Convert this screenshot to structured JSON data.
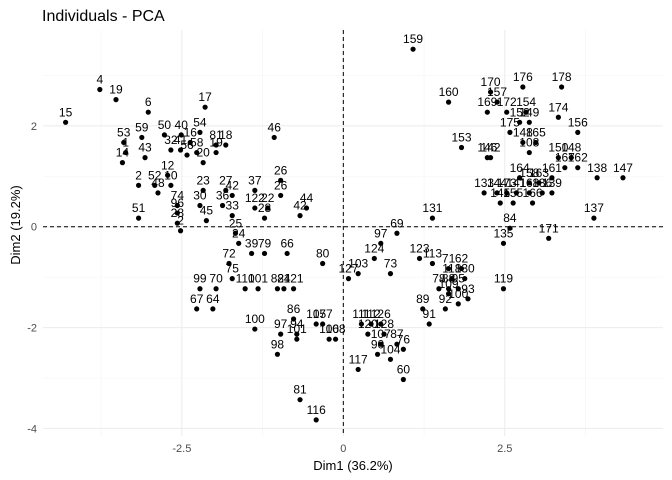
{
  "chart_data": {
    "type": "scatter",
    "title": "Individuals - PCA",
    "xlabel": "Dim1 (36.2%)",
    "ylabel": "Dim2 (19.2%)",
    "xlim": [
      -4.65,
      4.95
    ],
    "ylim": [
      -4.15,
      3.9
    ],
    "x_ticks": [
      -2.5,
      0.0,
      2.5
    ],
    "y_ticks": [
      -4,
      -2,
      0,
      2
    ],
    "grid": true,
    "reference_lines": {
      "x": 0,
      "y": 0,
      "style": "dashed"
    },
    "points": [
      {
        "label": "159",
        "x": 1.08,
        "y": 3.52
      },
      {
        "label": "4",
        "x": -3.77,
        "y": 2.72
      },
      {
        "label": "19",
        "x": -3.52,
        "y": 2.52
      },
      {
        "label": "15",
        "x": -4.3,
        "y": 2.07
      },
      {
        "label": "6",
        "x": -3.02,
        "y": 2.27
      },
      {
        "label": "17",
        "x": -2.14,
        "y": 2.37
      },
      {
        "label": "53",
        "x": -3.4,
        "y": 1.67
      },
      {
        "label": "59",
        "x": -3.12,
        "y": 1.77
      },
      {
        "label": "50",
        "x": -2.77,
        "y": 1.82
      },
      {
        "label": "40",
        "x": -2.51,
        "y": 1.82
      },
      {
        "label": "54",
        "x": -2.22,
        "y": 1.87
      },
      {
        "label": "1",
        "x": -3.37,
        "y": 1.47
      },
      {
        "label": "14",
        "x": -3.42,
        "y": 1.27
      },
      {
        "label": "43",
        "x": -3.07,
        "y": 1.37
      },
      {
        "label": "16",
        "x": -2.37,
        "y": 1.67
      },
      {
        "label": "81",
        "x": -1.97,
        "y": 1.62
      },
      {
        "label": "18",
        "x": -1.82,
        "y": 1.62
      },
      {
        "label": "58",
        "x": -2.27,
        "y": 1.47
      },
      {
        "label": "19",
        "x": -1.97,
        "y": 1.47
      },
      {
        "label": "32",
        "x": -2.67,
        "y": 1.52
      },
      {
        "label": "41",
        "x": -2.52,
        "y": 1.52
      },
      {
        "label": "56",
        "x": -2.42,
        "y": 1.42
      },
      {
        "label": "46",
        "x": -1.07,
        "y": 1.77
      },
      {
        "label": "20",
        "x": -2.17,
        "y": 1.27
      },
      {
        "label": "12",
        "x": -2.72,
        "y": 1.02
      },
      {
        "label": "2",
        "x": -3.17,
        "y": 0.82
      },
      {
        "label": "52",
        "x": -2.92,
        "y": 0.82
      },
      {
        "label": "10",
        "x": -2.67,
        "y": 0.82
      },
      {
        "label": "48",
        "x": -2.87,
        "y": 0.67
      },
      {
        "label": "23",
        "x": -2.17,
        "y": 0.72
      },
      {
        "label": "27",
        "x": -1.82,
        "y": 0.72
      },
      {
        "label": "37",
        "x": -1.37,
        "y": 0.72
      },
      {
        "label": "26",
        "x": -0.97,
        "y": 0.92
      },
      {
        "label": "26",
        "x": -0.97,
        "y": 0.62
      },
      {
        "label": "74",
        "x": -2.57,
        "y": 0.42
      },
      {
        "label": "30",
        "x": -2.22,
        "y": 0.42
      },
      {
        "label": "36",
        "x": -1.87,
        "y": 0.42
      },
      {
        "label": "42",
        "x": -1.72,
        "y": 0.62
      },
      {
        "label": "122",
        "x": -1.37,
        "y": 0.37
      },
      {
        "label": "22",
        "x": -1.17,
        "y": 0.37
      },
      {
        "label": "44",
        "x": -0.57,
        "y": 0.37
      },
      {
        "label": "42",
        "x": -0.67,
        "y": 0.22
      },
      {
        "label": "51",
        "x": -3.17,
        "y": 0.17
      },
      {
        "label": "96",
        "x": -2.57,
        "y": 0.27
      },
      {
        "label": "28",
        "x": -2.57,
        "y": 0.07
      },
      {
        "label": "45",
        "x": -2.12,
        "y": 0.12
      },
      {
        "label": "33",
        "x": -1.72,
        "y": 0.22
      },
      {
        "label": "28",
        "x": -1.22,
        "y": 0.17
      },
      {
        "label": "2",
        "x": -2.52,
        "y": -0.08
      },
      {
        "label": "25",
        "x": -1.67,
        "y": -0.13
      },
      {
        "label": "24",
        "x": -1.62,
        "y": -0.33
      },
      {
        "label": "72",
        "x": -1.77,
        "y": -0.73
      },
      {
        "label": "39",
        "x": -1.42,
        "y": -0.53
      },
      {
        "label": "79",
        "x": -1.22,
        "y": -0.53
      },
      {
        "label": "66",
        "x": -0.87,
        "y": -0.53
      },
      {
        "label": "80",
        "x": -0.32,
        "y": -0.73
      },
      {
        "label": "99",
        "x": -2.22,
        "y": -1.23
      },
      {
        "label": "70",
        "x": -1.97,
        "y": -1.23
      },
      {
        "label": "75",
        "x": -1.72,
        "y": -1.03
      },
      {
        "label": "110",
        "x": -1.52,
        "y": -1.23
      },
      {
        "label": "101",
        "x": -1.32,
        "y": -1.23
      },
      {
        "label": "67",
        "x": -2.27,
        "y": -1.63
      },
      {
        "label": "64",
        "x": -2.02,
        "y": -1.63
      },
      {
        "label": "82",
        "x": -1.02,
        "y": -1.23
      },
      {
        "label": "84",
        "x": -0.92,
        "y": -1.23
      },
      {
        "label": "121",
        "x": -0.77,
        "y": -1.23
      },
      {
        "label": "100",
        "x": -1.37,
        "y": -2.03
      },
      {
        "label": "86",
        "x": -0.77,
        "y": -1.83
      },
      {
        "label": "97",
        "x": -0.97,
        "y": -2.13
      },
      {
        "label": "94",
        "x": -0.72,
        "y": -2.13
      },
      {
        "label": "101",
        "x": -0.72,
        "y": -2.23
      },
      {
        "label": "98",
        "x": -1.02,
        "y": -2.53
      },
      {
        "label": "105",
        "x": -0.42,
        "y": -1.93
      },
      {
        "label": "177",
        "x": -0.32,
        "y": -1.93
      },
      {
        "label": "106",
        "x": -0.22,
        "y": -2.23
      },
      {
        "label": "108",
        "x": -0.12,
        "y": -2.23
      },
      {
        "label": "81",
        "x": -0.67,
        "y": -3.43
      },
      {
        "label": "116",
        "x": -0.42,
        "y": -3.83
      },
      {
        "label": "103",
        "x": 0.23,
        "y": -0.93
      },
      {
        "label": "127",
        "x": 0.08,
        "y": -1.03
      },
      {
        "label": "97",
        "x": 0.58,
        "y": -0.33
      },
      {
        "label": "124",
        "x": 0.48,
        "y": -0.63
      },
      {
        "label": "69",
        "x": 0.83,
        "y": -0.13
      },
      {
        "label": "73",
        "x": 0.73,
        "y": -0.93
      },
      {
        "label": "111",
        "x": 0.28,
        "y": -1.93
      },
      {
        "label": "112",
        "x": 0.43,
        "y": -1.93
      },
      {
        "label": "126",
        "x": 0.58,
        "y": -1.93
      },
      {
        "label": "120",
        "x": 0.38,
        "y": -2.13
      },
      {
        "label": "128",
        "x": 0.63,
        "y": -2.13
      },
      {
        "label": "107",
        "x": 0.58,
        "y": -2.33
      },
      {
        "label": "87",
        "x": 0.83,
        "y": -2.33
      },
      {
        "label": "90",
        "x": 0.53,
        "y": -2.53
      },
      {
        "label": "104",
        "x": 0.73,
        "y": -2.63
      },
      {
        "label": "76",
        "x": 0.93,
        "y": -2.43
      },
      {
        "label": "117",
        "x": 0.23,
        "y": -2.83
      },
      {
        "label": "60",
        "x": 0.93,
        "y": -3.03
      },
      {
        "label": "131",
        "x": 1.38,
        "y": 0.17
      },
      {
        "label": "123",
        "x": 1.18,
        "y": -0.63
      },
      {
        "label": "113",
        "x": 1.38,
        "y": -0.73
      },
      {
        "label": "71",
        "x": 1.63,
        "y": -0.83
      },
      {
        "label": "62",
        "x": 1.83,
        "y": -0.83
      },
      {
        "label": "118",
        "x": 1.68,
        "y": -1.03
      },
      {
        "label": "130",
        "x": 1.88,
        "y": -1.03
      },
      {
        "label": "78",
        "x": 1.48,
        "y": -1.23
      },
      {
        "label": "88",
        "x": 1.63,
        "y": -1.23
      },
      {
        "label": "95",
        "x": 1.78,
        "y": -1.23
      },
      {
        "label": "93",
        "x": 1.93,
        "y": -1.43
      },
      {
        "label": "109",
        "x": 1.63,
        "y": -1.33
      },
      {
        "label": "100",
        "x": 1.78,
        "y": -1.53
      },
      {
        "label": "92",
        "x": 1.58,
        "y": -1.63
      },
      {
        "label": "89",
        "x": 1.23,
        "y": -1.63
      },
      {
        "label": "91",
        "x": 1.33,
        "y": -1.93
      },
      {
        "label": "119",
        "x": 2.48,
        "y": -1.23
      },
      {
        "label": "135",
        "x": 2.48,
        "y": -0.33
      },
      {
        "label": "84",
        "x": 2.58,
        "y": -0.03
      },
      {
        "label": "171",
        "x": 3.18,
        "y": -0.23
      },
      {
        "label": "137",
        "x": 3.88,
        "y": 0.17
      },
      {
        "label": "160",
        "x": 1.63,
        "y": 2.47
      },
      {
        "label": "153",
        "x": 1.83,
        "y": 1.57
      },
      {
        "label": "176",
        "x": 2.78,
        "y": 2.77
      },
      {
        "label": "178",
        "x": 3.38,
        "y": 2.77
      },
      {
        "label": "170",
        "x": 2.28,
        "y": 2.67
      },
      {
        "label": "157",
        "x": 2.38,
        "y": 2.47
      },
      {
        "label": "169",
        "x": 2.23,
        "y": 2.27
      },
      {
        "label": "172",
        "x": 2.53,
        "y": 2.27
      },
      {
        "label": "154",
        "x": 2.83,
        "y": 2.27
      },
      {
        "label": "174",
        "x": 3.33,
        "y": 2.17
      },
      {
        "label": "152",
        "x": 2.73,
        "y": 2.07
      },
      {
        "label": "149",
        "x": 2.88,
        "y": 2.07
      },
      {
        "label": "175",
        "x": 2.58,
        "y": 1.87
      },
      {
        "label": "156",
        "x": 3.63,
        "y": 1.87
      },
      {
        "label": "148",
        "x": 2.78,
        "y": 1.67
      },
      {
        "label": "165",
        "x": 2.98,
        "y": 1.67
      },
      {
        "label": "108",
        "x": 2.88,
        "y": 1.47
      },
      {
        "label": "146",
        "x": 2.23,
        "y": 1.37
      },
      {
        "label": "142",
        "x": 2.28,
        "y": 1.37
      },
      {
        "label": "150",
        "x": 3.33,
        "y": 1.37
      },
      {
        "label": "148",
        "x": 3.53,
        "y": 1.37
      },
      {
        "label": "167",
        "x": 3.43,
        "y": 1.17
      },
      {
        "label": "162",
        "x": 3.63,
        "y": 1.17
      },
      {
        "label": "138",
        "x": 3.93,
        "y": 0.97
      },
      {
        "label": "147",
        "x": 4.33,
        "y": 0.97
      },
      {
        "label": "164",
        "x": 2.73,
        "y": 0.97
      },
      {
        "label": "161",
        "x": 3.23,
        "y": 0.97
      },
      {
        "label": "158",
        "x": 2.88,
        "y": 0.87
      },
      {
        "label": "163",
        "x": 3.03,
        "y": 0.87
      },
      {
        "label": "133",
        "x": 2.18,
        "y": 0.67
      },
      {
        "label": "144",
        "x": 2.38,
        "y": 0.67
      },
      {
        "label": "173",
        "x": 2.53,
        "y": 0.67
      },
      {
        "label": "141",
        "x": 2.68,
        "y": 0.67
      },
      {
        "label": "168",
        "x": 2.88,
        "y": 0.67
      },
      {
        "label": "136",
        "x": 3.08,
        "y": 0.67
      },
      {
        "label": "139",
        "x": 3.23,
        "y": 0.67
      },
      {
        "label": "145",
        "x": 2.43,
        "y": 0.47
      },
      {
        "label": "155",
        "x": 2.63,
        "y": 0.47
      },
      {
        "label": "166",
        "x": 2.93,
        "y": 0.47
      }
    ]
  }
}
